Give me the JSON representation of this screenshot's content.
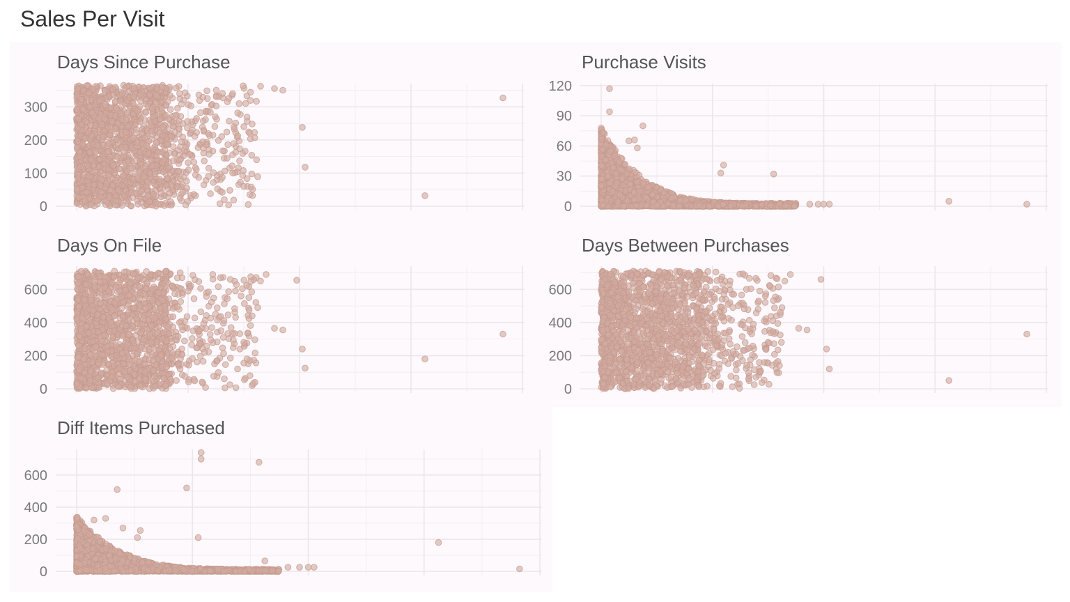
{
  "page": {
    "title": "Sales Per Visit",
    "panel_background": "#fdf9fc",
    "point_color": "#d2aba0"
  },
  "chart_data": [
    {
      "type": "scatter",
      "title": "Days Since Purchase",
      "ylim": [
        0,
        370
      ],
      "y_ticks": [
        0,
        100,
        200,
        300
      ],
      "y_tick_labels": [
        "0",
        "100",
        "200",
        "300"
      ],
      "xlim": [
        0,
        16
      ],
      "x_ticks": [
        0,
        4,
        8,
        12,
        16
      ],
      "x_tick_labels": [
        "",
        "",
        "",
        "",
        ""
      ],
      "cloud": {
        "x_range": [
          0,
          3.2
        ],
        "x_tail": 6.5,
        "y_range": [
          0,
          365
        ],
        "shape": "uniform"
      },
      "outliers": [
        [
          15.3,
          327
        ],
        [
          12.5,
          32
        ],
        [
          8.2,
          118
        ],
        [
          8.1,
          238
        ],
        [
          7.4,
          350
        ],
        [
          7.1,
          355
        ],
        [
          6.6,
          362
        ],
        [
          6.3,
          248
        ],
        [
          6.0,
          240
        ],
        [
          5.6,
          340
        ],
        [
          5.6,
          100
        ],
        [
          6.0,
          60
        ],
        [
          5.3,
          20
        ],
        [
          5.4,
          145
        ],
        [
          5.5,
          48
        ]
      ]
    },
    {
      "type": "scatter",
      "title": "Purchase Visits",
      "ylim": [
        0,
        122
      ],
      "y_ticks": [
        0,
        30,
        60,
        90,
        120
      ],
      "y_tick_labels": [
        "0",
        "30",
        "60",
        "90",
        "120"
      ],
      "xlim": [
        0,
        16
      ],
      "x_ticks": [
        0,
        4,
        8,
        12,
        16
      ],
      "x_tick_labels": [
        "",
        "",
        "",
        "",
        ""
      ],
      "cloud": {
        "x_range": [
          0,
          7
        ],
        "y_range": [
          0,
          75
        ],
        "shape": "decay"
      },
      "outliers": [
        [
          15.3,
          2
        ],
        [
          12.5,
          5
        ],
        [
          8.2,
          2
        ],
        [
          8.0,
          2
        ],
        [
          7.8,
          2
        ],
        [
          7.5,
          2
        ],
        [
          6.2,
          32
        ],
        [
          4.3,
          33
        ],
        [
          4.4,
          41
        ],
        [
          1.5,
          80
        ],
        [
          0.3,
          117
        ],
        [
          0.3,
          94
        ],
        [
          1.0,
          65
        ],
        [
          1.2,
          66
        ],
        [
          1.3,
          58
        ]
      ]
    },
    {
      "type": "scatter",
      "title": "Days On File",
      "ylim": [
        0,
        740
      ],
      "y_ticks": [
        0,
        200,
        400,
        600
      ],
      "y_tick_labels": [
        "0",
        "200",
        "400",
        "600"
      ],
      "xlim": [
        0,
        16
      ],
      "x_ticks": [
        0,
        4,
        8,
        12,
        16
      ],
      "x_tick_labels": [
        "",
        "",
        "",
        "",
        ""
      ],
      "cloud": {
        "x_range": [
          0,
          3.2
        ],
        "x_tail": 6.5,
        "y_range": [
          0,
          710
        ],
        "shape": "uniform"
      },
      "outliers": [
        [
          15.3,
          330
        ],
        [
          12.5,
          180
        ],
        [
          8.2,
          125
        ],
        [
          8.1,
          240
        ],
        [
          7.9,
          655
        ],
        [
          7.4,
          355
        ],
        [
          7.1,
          365
        ],
        [
          6.8,
          690
        ],
        [
          6.6,
          650
        ],
        [
          6.3,
          440
        ],
        [
          6.0,
          155
        ],
        [
          6.5,
          490
        ],
        [
          5.9,
          560
        ],
        [
          5.7,
          590
        ],
        [
          5.5,
          25
        ],
        [
          5.3,
          60
        ],
        [
          6.0,
          280
        ]
      ]
    },
    {
      "type": "scatter",
      "title": "Days Between Purchases",
      "ylim": [
        0,
        740
      ],
      "y_ticks": [
        0,
        200,
        400,
        600
      ],
      "y_tick_labels": [
        "0",
        "200",
        "400",
        "600"
      ],
      "xlim": [
        0,
        16
      ],
      "x_ticks": [
        0,
        4,
        8,
        12,
        16
      ],
      "x_tick_labels": [
        "",
        "",
        "",
        "",
        ""
      ],
      "cloud": {
        "x_range": [
          0,
          3.5
        ],
        "x_tail": 6.5,
        "y_range": [
          0,
          710
        ],
        "shape": "uniform"
      },
      "outliers": [
        [
          15.3,
          330
        ],
        [
          12.5,
          50
        ],
        [
          8.2,
          120
        ],
        [
          8.1,
          240
        ],
        [
          7.9,
          660
        ],
        [
          7.4,
          355
        ],
        [
          7.1,
          365
        ],
        [
          6.8,
          690
        ],
        [
          6.6,
          650
        ],
        [
          6.3,
          440
        ],
        [
          6.0,
          155
        ],
        [
          6.5,
          490
        ],
        [
          5.9,
          560
        ],
        [
          5.7,
          590
        ],
        [
          5.5,
          25
        ],
        [
          5.3,
          60
        ],
        [
          6.0,
          280
        ]
      ]
    },
    {
      "type": "scatter",
      "title": "Diff Items Purchased",
      "ylim": [
        0,
        760
      ],
      "y_ticks": [
        0,
        200,
        400,
        600
      ],
      "y_tick_labels": [
        "0",
        "200",
        "400",
        "600"
      ],
      "xlim": [
        0,
        16
      ],
      "x_ticks": [
        0,
        4,
        8,
        12,
        16
      ],
      "x_tick_labels": [
        "",
        "",
        "",
        "",
        ""
      ],
      "cloud": {
        "x_range": [
          0,
          7
        ],
        "y_range": [
          0,
          330
        ],
        "shape": "decay"
      },
      "outliers": [
        [
          15.3,
          15
        ],
        [
          12.5,
          180
        ],
        [
          8.2,
          25
        ],
        [
          8.0,
          25
        ],
        [
          7.7,
          25
        ],
        [
          7.3,
          25
        ],
        [
          6.5,
          65
        ],
        [
          6.3,
          680
        ],
        [
          4.3,
          740
        ],
        [
          4.3,
          700
        ],
        [
          4.2,
          210
        ],
        [
          3.8,
          520
        ],
        [
          1.4,
          510
        ],
        [
          1.0,
          330
        ],
        [
          0.6,
          320
        ],
        [
          1.6,
          270
        ],
        [
          2.2,
          255
        ],
        [
          2.1,
          210
        ]
      ]
    }
  ]
}
